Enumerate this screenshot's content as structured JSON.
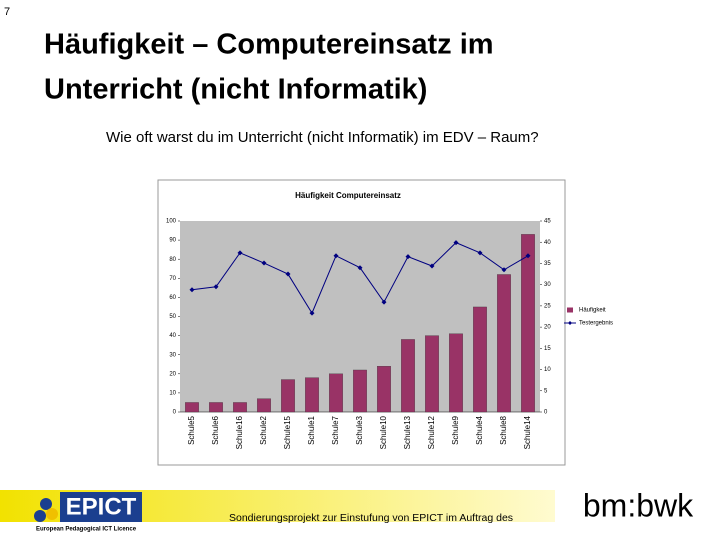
{
  "slide": {
    "page_number": "7",
    "title_lines": [
      "Häufigkeit – Computereinsatz im",
      "Unterricht (nicht Informatik)"
    ],
    "question": "Wie oft warst du im Unterricht (nicht Informatik) im EDV – Raum?",
    "footer": "Sondierungsprojekt zur Einstufung von EPICT im Auftrag des",
    "logo_text": "EPICT",
    "logo_subtext": "European Pedagogical ICT Licence",
    "ministry_logo": "bm:bwk"
  },
  "chart_data": {
    "type": "bar_line",
    "title": "Häufigkeit Computereinsatz",
    "categories": [
      "Schule5",
      "Schule6",
      "Schule16",
      "Schule2",
      "Schule15",
      "Schule1",
      "Schule7",
      "Schule3",
      "Schule10",
      "Schule13",
      "Schule12",
      "Schule9",
      "Schule4",
      "Schule8",
      "Schule14"
    ],
    "series": [
      {
        "name": "Häufigkeit",
        "color": "#993366",
        "type": "bar",
        "values": [
          5,
          5,
          5,
          7,
          17,
          18,
          20,
          22,
          24,
          38,
          40,
          41,
          55,
          72,
          93
        ]
      },
      {
        "name": "Testergebnis",
        "color": "#000080",
        "type": "line",
        "axis": "y2",
        "values": [
          28.8,
          29.5,
          37.5,
          35.1,
          32.5,
          23.3,
          36.8,
          34,
          25.9,
          36.6,
          34.4,
          39.9,
          37.5,
          33.5,
          36.8
        ]
      }
    ],
    "ylim": [
      0,
      100
    ],
    "yticks": [
      0,
      10,
      20,
      30,
      40,
      50,
      60,
      70,
      80,
      90,
      100
    ],
    "y2lim": [
      0,
      45
    ],
    "y2ticks": [
      0,
      5,
      10,
      15,
      20,
      25,
      30,
      35,
      40,
      45
    ],
    "legend": "right"
  }
}
